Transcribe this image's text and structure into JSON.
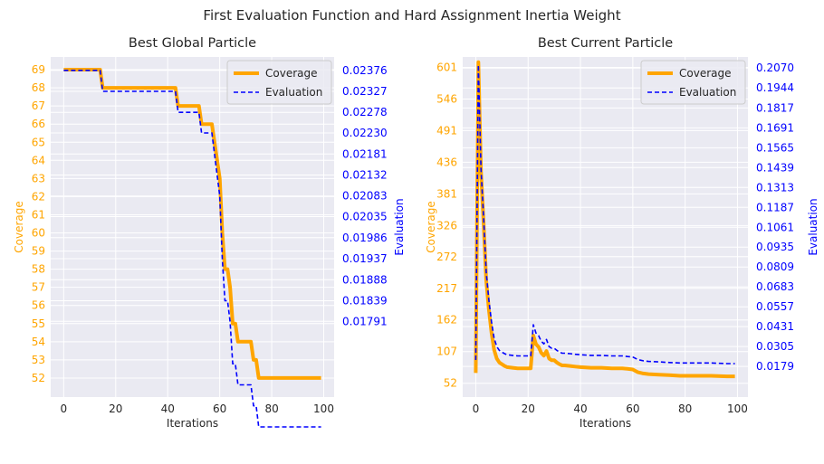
{
  "suptitle": "First Evaluation Function and Hard Assignment Inertia Weight",
  "colors": {
    "coverage": "#ffa500",
    "evaluation": "#0000ff",
    "axes_bg": "#eaeaf2",
    "grid": "#ffffff",
    "text": "#262626"
  },
  "chart_data": [
    {
      "type": "line",
      "title": "Best Global Particle",
      "xlabel": "Iterations",
      "ylabel_left": "Coverage",
      "ylabel_right": "Evaluation",
      "xlim": [
        -5,
        104
      ],
      "xticks": [
        "0",
        "20",
        "40",
        "60",
        "80",
        "100"
      ],
      "ylim": [
        50.95,
        69.7
      ],
      "yticks_left": [
        "52",
        "53",
        "54",
        "55",
        "56",
        "57",
        "58",
        "59",
        "60",
        "61",
        "62",
        "63",
        "64",
        "65",
        "66",
        "67",
        "68",
        "69"
      ],
      "yticks_right": [
        "0.01791",
        "0.01839",
        "0.01888",
        "0.01937",
        "0.01986",
        "0.02035",
        "0.02083",
        "0.02132",
        "0.02181",
        "0.02230",
        "0.02278",
        "0.02327",
        "0.02376"
      ],
      "legend": "top-right",
      "series": [
        {
          "name": "Coverage",
          "axis": "left",
          "style": "solid",
          "x": [
            0,
            14,
            15,
            43,
            44,
            52,
            53,
            57,
            58,
            59,
            60,
            61,
            62,
            63,
            64,
            65,
            66,
            67,
            68,
            72,
            73,
            74,
            75,
            76,
            99
          ],
          "y": [
            69,
            69,
            68,
            68,
            67,
            67,
            66,
            66,
            65,
            64,
            63,
            60,
            58,
            58,
            57,
            55,
            55,
            54,
            54,
            54,
            53,
            53,
            52,
            52,
            52
          ]
        },
        {
          "name": "Evaluation",
          "axis": "right",
          "style": "dashed",
          "x": [
            0,
            14,
            15,
            43,
            44,
            52,
            53,
            57,
            58,
            59,
            60,
            61,
            62,
            63,
            64,
            65,
            66,
            67,
            68,
            72,
            73,
            74,
            75,
            76,
            99
          ],
          "y": [
            0.02376,
            0.02376,
            0.02327,
            0.02327,
            0.02278,
            0.02278,
            0.0223,
            0.0223,
            0.02181,
            0.02132,
            0.02083,
            0.01937,
            0.01839,
            0.01839,
            0.0179,
            0.01692,
            0.01692,
            0.01643,
            0.01643,
            0.01643,
            0.01594,
            0.01594,
            0.01545,
            0.01545,
            0.01545
          ]
        }
      ]
    },
    {
      "type": "line",
      "title": "Best Current Particle",
      "xlabel": "Iterations",
      "ylabel_left": "Coverage",
      "ylabel_right": "Evaluation",
      "xlim": [
        -5,
        104
      ],
      "xticks": [
        "0",
        "20",
        "40",
        "60",
        "80",
        "100"
      ],
      "ylim": [
        28,
        619
      ],
      "yticks_left": [
        "52",
        "107",
        "162",
        "217",
        "272",
        "326",
        "381",
        "436",
        "491",
        "546",
        "601"
      ],
      "yticks_right": [
        "0.0179",
        "0.0305",
        "0.0431",
        "0.0557",
        "0.0683",
        "0.0809",
        "0.0935",
        "0.1061",
        "0.1187",
        "0.1313",
        "0.1439",
        "0.1565",
        "0.1691",
        "0.1817",
        "0.1944",
        "0.2070"
      ],
      "legend": "top-right",
      "series": [
        {
          "name": "Coverage",
          "axis": "left",
          "style": "solid",
          "x": [
            0,
            1,
            2,
            3,
            4,
            5,
            6,
            7,
            8,
            9,
            10,
            11,
            12,
            14,
            16,
            18,
            20,
            21,
            22,
            23,
            24,
            25,
            26,
            27,
            28,
            29,
            30,
            31,
            32,
            33,
            34,
            36,
            38,
            40,
            44,
            48,
            52,
            56,
            58,
            60,
            62,
            64,
            66,
            70,
            74,
            78,
            80,
            84,
            90,
            96,
            99
          ],
          "y": [
            70,
            610,
            420,
            330,
            230,
            180,
            140,
            110,
            95,
            88,
            85,
            82,
            80,
            79,
            78,
            78,
            78,
            78,
            135,
            120,
            115,
            105,
            100,
            108,
            95,
            92,
            92,
            88,
            85,
            83,
            83,
            82,
            81,
            80,
            79,
            79,
            78,
            78,
            77,
            76,
            71,
            69,
            68,
            67,
            66,
            65,
            65,
            65,
            65,
            64,
            64
          ]
        },
        {
          "name": "Evaluation",
          "axis": "right",
          "style": "dashed",
          "x": [
            0,
            1,
            2,
            3,
            4,
            5,
            6,
            7,
            8,
            9,
            10,
            11,
            12,
            14,
            16,
            18,
            20,
            21,
            22,
            23,
            24,
            25,
            26,
            27,
            28,
            29,
            30,
            31,
            32,
            33,
            34,
            36,
            38,
            40,
            44,
            48,
            52,
            56,
            58,
            60,
            62,
            64,
            66,
            70,
            74,
            78,
            80,
            84,
            90,
            96,
            99
          ],
          "y": [
            0.022,
            0.209,
            0.1432,
            0.112,
            0.0773,
            0.0599,
            0.0461,
            0.0357,
            0.0305,
            0.0281,
            0.027,
            0.026,
            0.0253,
            0.0249,
            0.0246,
            0.0246,
            0.0246,
            0.0246,
            0.0443,
            0.0391,
            0.0374,
            0.0339,
            0.0322,
            0.035,
            0.0305,
            0.0294,
            0.0294,
            0.0281,
            0.027,
            0.0263,
            0.0263,
            0.026,
            0.0256,
            0.0253,
            0.0249,
            0.0249,
            0.0246,
            0.0246,
            0.0242,
            0.0239,
            0.0222,
            0.0215,
            0.0211,
            0.0208,
            0.0204,
            0.0201,
            0.0201,
            0.0201,
            0.0201,
            0.0197,
            0.0197
          ]
        }
      ]
    }
  ]
}
